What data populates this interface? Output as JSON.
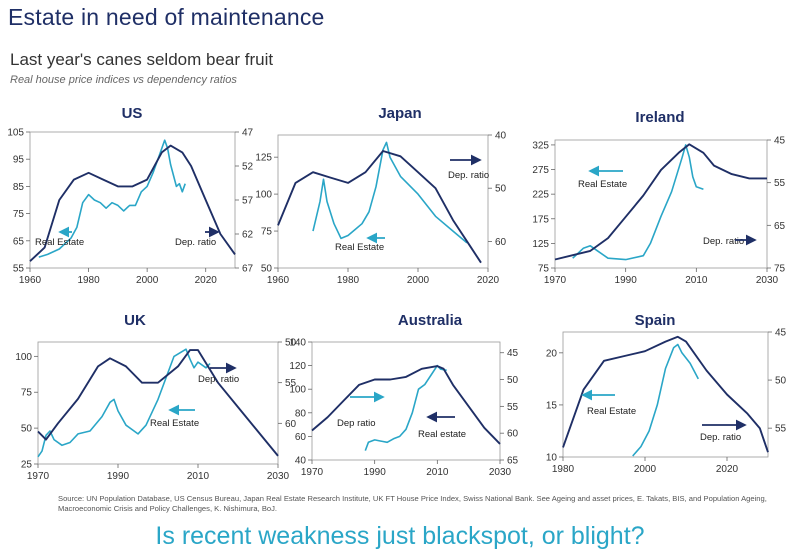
{
  "title": "Estate in need of maintenance",
  "subtitle": "Last year's canes seldom bear fruit",
  "subsubtitle": "Real house price indices vs dependency ratios",
  "source": "Source: UN Population Database, US Census Bureau, Japan Real Estate Research Institute, UK FT House Price Index, Swiss National Bank. See Ageing and asset prices, E. Takats, BIS, and Population Ageing, Macroeconomic Crisis and Policy Challenges, K. Nishimura, BoJ.",
  "bottom_line": "Is recent weakness just blackspot, or blight?",
  "colors": {
    "real_estate": "#2aa6c7",
    "dependency_ratio": "#1f2f66"
  },
  "chart_data": [
    {
      "type": "line",
      "title": "US",
      "x_range": [
        1960,
        2030
      ],
      "x_ticks": [
        1960,
        1980,
        2000,
        2020
      ],
      "left_axis": {
        "range": [
          55,
          105
        ],
        "ticks": [
          55,
          65,
          75,
          85,
          95,
          105
        ]
      },
      "right_axis": {
        "range": [
          67,
          47
        ],
        "ticks": [
          47,
          52,
          57,
          62,
          67
        ],
        "inverted": true
      },
      "series": [
        {
          "name": "Real Estate",
          "axis": "left",
          "color": "#2aa6c7",
          "points": [
            [
              1963,
              59
            ],
            [
              1966,
              60
            ],
            [
              1970,
              62
            ],
            [
              1974,
              66
            ],
            [
              1976,
              70
            ],
            [
              1978,
              79
            ],
            [
              1980,
              82
            ],
            [
              1982,
              80
            ],
            [
              1984,
              79
            ],
            [
              1986,
              77
            ],
            [
              1988,
              79
            ],
            [
              1990,
              78
            ],
            [
              1992,
              76
            ],
            [
              1994,
              78
            ],
            [
              1996,
              78
            ],
            [
              1998,
              83
            ],
            [
              2000,
              85
            ],
            [
              2002,
              90
            ],
            [
              2004,
              96
            ],
            [
              2006,
              102
            ],
            [
              2007,
              99
            ],
            [
              2008,
              93
            ],
            [
              2009,
              89
            ],
            [
              2010,
              85
            ],
            [
              2011,
              86
            ],
            [
              2012,
              83
            ],
            [
              2013,
              86
            ]
          ]
        },
        {
          "name": "Dep. ratio",
          "axis": "right",
          "color": "#1f2f66",
          "points": [
            [
              1960,
              66
            ],
            [
              1965,
              64
            ],
            [
              1970,
              57
            ],
            [
              1975,
              54
            ],
            [
              1980,
              53
            ],
            [
              1985,
              54
            ],
            [
              1990,
              55
            ],
            [
              1995,
              55
            ],
            [
              2000,
              54
            ],
            [
              2005,
              50
            ],
            [
              2008,
              49
            ],
            [
              2012,
              50
            ],
            [
              2015,
              52
            ],
            [
              2020,
              57
            ],
            [
              2025,
              62
            ],
            [
              2030,
              65
            ]
          ]
        }
      ],
      "annotations": [
        "Real Estate",
        "Dep. ratio"
      ]
    },
    {
      "type": "line",
      "title": "Japan",
      "x_range": [
        1960,
        2020
      ],
      "x_ticks": [
        1960,
        1980,
        2000,
        2020
      ],
      "left_axis": {
        "range": [
          50,
          140
        ],
        "ticks": [
          50,
          75,
          100,
          125
        ]
      },
      "right_axis": {
        "range": [
          65,
          40
        ],
        "ticks": [
          40,
          50,
          60
        ],
        "inverted": true
      },
      "series": [
        {
          "name": "Real Estate",
          "axis": "left",
          "color": "#2aa6c7",
          "points": [
            [
              1970,
              75
            ],
            [
              1972,
              95
            ],
            [
              1973,
              110
            ],
            [
              1974,
              95
            ],
            [
              1976,
              80
            ],
            [
              1978,
              70
            ],
            [
              1980,
              72
            ],
            [
              1982,
              76
            ],
            [
              1984,
              80
            ],
            [
              1986,
              88
            ],
            [
              1988,
              105
            ],
            [
              1990,
              130
            ],
            [
              1991,
              135
            ],
            [
              1992,
              125
            ],
            [
              1995,
              112
            ],
            [
              2000,
              100
            ],
            [
              2005,
              85
            ],
            [
              2010,
              75
            ],
            [
              2014,
              67
            ]
          ]
        },
        {
          "name": "Dep. ratio",
          "axis": "right",
          "color": "#1f2f66",
          "points": [
            [
              1960,
              57
            ],
            [
              1965,
              49
            ],
            [
              1970,
              47
            ],
            [
              1975,
              48
            ],
            [
              1980,
              49
            ],
            [
              1985,
              47
            ],
            [
              1990,
              43
            ],
            [
              1995,
              44
            ],
            [
              2000,
              47
            ],
            [
              2005,
              50
            ],
            [
              2010,
              56
            ],
            [
              2015,
              61
            ],
            [
              2018,
              64
            ]
          ]
        }
      ],
      "annotations": [
        "Dep. ratio",
        "Real Estate"
      ]
    },
    {
      "type": "line",
      "title": "Ireland",
      "x_range": [
        1970,
        2030
      ],
      "x_ticks": [
        1970,
        1990,
        2010,
        2030
      ],
      "left_axis": {
        "range": [
          75,
          335
        ],
        "ticks": [
          75,
          125,
          175,
          225,
          275,
          325
        ]
      },
      "right_axis": {
        "range": [
          75,
          45
        ],
        "ticks": [
          45,
          55,
          65,
          75
        ],
        "inverted": true
      },
      "series": [
        {
          "name": "Real Estate",
          "axis": "left",
          "color": "#2aa6c7",
          "points": [
            [
              1975,
              95
            ],
            [
              1978,
              115
            ],
            [
              1980,
              120
            ],
            [
              1982,
              110
            ],
            [
              1985,
              95
            ],
            [
              1990,
              92
            ],
            [
              1995,
              100
            ],
            [
              1997,
              125
            ],
            [
              2000,
              180
            ],
            [
              2003,
              230
            ],
            [
              2006,
              300
            ],
            [
              2007,
              325
            ],
            [
              2008,
              300
            ],
            [
              2009,
              260
            ],
            [
              2010,
              240
            ],
            [
              2012,
              235
            ]
          ]
        },
        {
          "name": "Dep. ratio",
          "axis": "right",
          "color": "#1f2f66",
          "points": [
            [
              1970,
              73
            ],
            [
              1975,
              72
            ],
            [
              1980,
              71
            ],
            [
              1985,
              68
            ],
            [
              1990,
              63
            ],
            [
              1995,
              58
            ],
            [
              2000,
              52
            ],
            [
              2005,
              48
            ],
            [
              2008,
              46
            ],
            [
              2012,
              48
            ],
            [
              2015,
              51
            ],
            [
              2020,
              53
            ],
            [
              2025,
              54
            ],
            [
              2030,
              54
            ]
          ]
        }
      ],
      "annotations": [
        "Real Estate",
        "Dep. ratio"
      ]
    },
    {
      "type": "line",
      "title": "UK",
      "x_range": [
        1970,
        2030
      ],
      "x_ticks": [
        1970,
        1990,
        2010,
        2030
      ],
      "left_axis": {
        "range": [
          25,
          110
        ],
        "ticks": [
          25,
          50,
          75,
          100
        ]
      },
      "right_axis": {
        "range": [
          65,
          50
        ],
        "ticks": [
          50,
          55,
          60
        ],
        "inverted": true
      },
      "series": [
        {
          "name": "Real Estate",
          "axis": "left",
          "color": "#2aa6c7",
          "points": [
            [
              1970,
              30
            ],
            [
              1971,
              34
            ],
            [
              1972,
              45
            ],
            [
              1973,
              48
            ],
            [
              1974,
              42
            ],
            [
              1976,
              38
            ],
            [
              1978,
              40
            ],
            [
              1980,
              46
            ],
            [
              1983,
              48
            ],
            [
              1986,
              58
            ],
            [
              1988,
              68
            ],
            [
              1989,
              70
            ],
            [
              1990,
              62
            ],
            [
              1992,
              52
            ],
            [
              1995,
              46
            ],
            [
              1997,
              52
            ],
            [
              2000,
              70
            ],
            [
              2002,
              85
            ],
            [
              2004,
              100
            ],
            [
              2007,
              105
            ],
            [
              2008,
              98
            ],
            [
              2009,
              92
            ],
            [
              2010,
              96
            ],
            [
              2012,
              92
            ],
            [
              2013,
              95
            ]
          ]
        },
        {
          "name": "Dep. ratio",
          "axis": "right",
          "color": "#1f2f66",
          "points": [
            [
              1970,
              61
            ],
            [
              1972,
              62
            ],
            [
              1975,
              60
            ],
            [
              1980,
              57
            ],
            [
              1985,
              53
            ],
            [
              1988,
              52
            ],
            [
              1992,
              53
            ],
            [
              1996,
              55
            ],
            [
              2000,
              55
            ],
            [
              2005,
              53
            ],
            [
              2008,
              51
            ],
            [
              2010,
              51
            ],
            [
              2015,
              55
            ],
            [
              2020,
              58
            ],
            [
              2025,
              61
            ],
            [
              2030,
              64
            ]
          ]
        }
      ],
      "annotations": [
        "Dep. ratio",
        "Real Estate"
      ]
    },
    {
      "type": "line",
      "title": "Australia",
      "x_range": [
        1970,
        2030
      ],
      "x_ticks": [
        1970,
        1990,
        2010,
        2030
      ],
      "left_axis": {
        "range": [
          40,
          140
        ],
        "ticks": [
          40,
          60,
          80,
          100,
          120,
          140
        ]
      },
      "right_axis": {
        "range": [
          65,
          43
        ],
        "ticks": [
          45,
          50,
          55,
          60,
          65
        ],
        "inverted": true
      },
      "series": [
        {
          "name": "Real estate",
          "axis": "left",
          "color": "#2aa6c7",
          "points": [
            [
              1987,
              48
            ],
            [
              1988,
              55
            ],
            [
              1990,
              57
            ],
            [
              1992,
              56
            ],
            [
              1994,
              55
            ],
            [
              1996,
              58
            ],
            [
              1998,
              60
            ],
            [
              2000,
              66
            ],
            [
              2002,
              80
            ],
            [
              2004,
              100
            ],
            [
              2006,
              104
            ],
            [
              2008,
              112
            ],
            [
              2010,
              120
            ],
            [
              2011,
              117
            ],
            [
              2013,
              116
            ]
          ]
        },
        {
          "name": "Dep ratio",
          "axis": "right",
          "color": "#1f2f66",
          "points": [
            [
              1970,
              59.5
            ],
            [
              1975,
              57
            ],
            [
              1980,
              54
            ],
            [
              1985,
              51
            ],
            [
              1990,
              50
            ],
            [
              1995,
              50
            ],
            [
              2000,
              49.5
            ],
            [
              2005,
              48
            ],
            [
              2010,
              47.5
            ],
            [
              2012,
              48
            ],
            [
              2015,
              51
            ],
            [
              2020,
              55
            ],
            [
              2025,
              59
            ],
            [
              2030,
              62
            ]
          ]
        }
      ],
      "annotations": [
        "Dep ratio",
        "Real estate"
      ]
    },
    {
      "type": "line",
      "title": "Spain",
      "x_range": [
        1980,
        2030
      ],
      "x_ticks": [
        1980,
        2000,
        2020
      ],
      "left_axis": {
        "range": [
          10,
          22
        ],
        "ticks": [
          10,
          15,
          20
        ]
      },
      "right_axis": {
        "range": [
          58,
          45
        ],
        "ticks": [
          45,
          50,
          55
        ],
        "inverted": true
      },
      "series": [
        {
          "name": "Real Estate",
          "axis": "left",
          "color": "#2aa6c7",
          "points": [
            [
              1997,
              10.1
            ],
            [
              1999,
              11
            ],
            [
              2001,
              12.5
            ],
            [
              2003,
              15
            ],
            [
              2005,
              18.5
            ],
            [
              2007,
              20.5
            ],
            [
              2008,
              20.8
            ],
            [
              2009,
              20
            ],
            [
              2011,
              19
            ],
            [
              2013,
              17.5
            ]
          ]
        },
        {
          "name": "Dep. ratio",
          "axis": "right",
          "color": "#1f2f66",
          "points": [
            [
              1980,
              57
            ],
            [
              1985,
              51
            ],
            [
              1990,
              48
            ],
            [
              1995,
              47.5
            ],
            [
              2000,
              47
            ],
            [
              2005,
              46
            ],
            [
              2008,
              45.5
            ],
            [
              2010,
              46
            ],
            [
              2015,
              49
            ],
            [
              2020,
              51.5
            ],
            [
              2025,
              53.5
            ],
            [
              2028,
              55
            ],
            [
              2030,
              57.5
            ]
          ]
        }
      ],
      "annotations": [
        "Real Estate",
        "Dep. ratio"
      ]
    }
  ]
}
